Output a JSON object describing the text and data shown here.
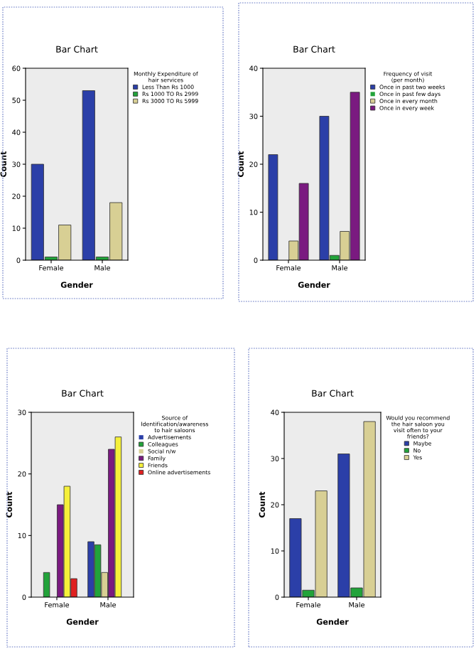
{
  "chart_data": [
    {
      "type": "bar",
      "title": "Bar Chart",
      "xlabel": "Gender",
      "ylabel": "Count",
      "legend_title": "Monthly Expenditure of hair services",
      "categories": [
        "Female",
        "Male"
      ],
      "ylim": [
        0,
        60
      ],
      "yticks": [
        0,
        10,
        20,
        30,
        40,
        50,
        60
      ],
      "legend": "right",
      "series": [
        {
          "name": "Less Than Rs 1000",
          "color": "#2b3fa8",
          "values": [
            30,
            53
          ]
        },
        {
          "name": "Rs 1000 TO Rs 2999",
          "color": "#22a33a",
          "values": [
            1,
            1
          ]
        },
        {
          "name": "Rs 3000 TO Rs 5999",
          "color": "#d8cf94",
          "values": [
            11,
            18
          ]
        }
      ]
    },
    {
      "type": "bar",
      "title": "Bar Chart",
      "xlabel": "Gender",
      "ylabel": "Count",
      "legend_title": "Frequency of visit (per month)",
      "categories": [
        "Female",
        "Male"
      ],
      "ylim": [
        0,
        40
      ],
      "yticks": [
        0,
        10,
        20,
        30,
        40
      ],
      "legend": "right",
      "series": [
        {
          "name": "Once in past two weeks",
          "color": "#2b3fa8",
          "values": [
            22,
            30
          ]
        },
        {
          "name": "Once in past few days",
          "color": "#22a33a",
          "values": [
            0,
            1
          ]
        },
        {
          "name": "Once in every month",
          "color": "#d8cf94",
          "values": [
            4,
            6
          ]
        },
        {
          "name": "Once in every week",
          "color": "#7a1a80",
          "values": [
            16,
            35
          ]
        }
      ]
    },
    {
      "type": "bar",
      "title": "Bar Chart",
      "xlabel": "Gender",
      "ylabel": "Count",
      "legend_title": "Source of Identification/awareness to hair saloons",
      "categories": [
        "Female",
        "Male"
      ],
      "ylim": [
        0,
        30
      ],
      "yticks": [
        0,
        10,
        20,
        30
      ],
      "legend": "right",
      "series": [
        {
          "name": "Advertisements",
          "color": "#2b3fa8",
          "values": [
            0,
            9
          ]
        },
        {
          "name": "Colleagues",
          "color": "#22a33a",
          "values": [
            4,
            8.5
          ]
        },
        {
          "name": "Social n/w",
          "color": "#d8cf94",
          "values": [
            0,
            4
          ]
        },
        {
          "name": "Family",
          "color": "#7a1a80",
          "values": [
            15,
            24
          ]
        },
        {
          "name": "Friends",
          "color": "#f5f03a",
          "values": [
            18,
            26
          ]
        },
        {
          "name": "Online advertisements",
          "color": "#e02020",
          "values": [
            3,
            0
          ]
        }
      ]
    },
    {
      "type": "bar",
      "title": "Bar Chart",
      "xlabel": "Gender",
      "ylabel": "Count",
      "legend_title": "Would you recommend the hair saloon you visit often to your friends?",
      "categories": [
        "Female",
        "Male"
      ],
      "ylim": [
        0,
        40
      ],
      "yticks": [
        0,
        10,
        20,
        30,
        40
      ],
      "legend": "right",
      "series": [
        {
          "name": "Maybe",
          "color": "#2b3fa8",
          "values": [
            17,
            31
          ]
        },
        {
          "name": "No",
          "color": "#22a33a",
          "values": [
            1.5,
            2
          ]
        },
        {
          "name": "Yes",
          "color": "#d8cf94",
          "values": [
            23,
            38
          ]
        }
      ]
    }
  ]
}
